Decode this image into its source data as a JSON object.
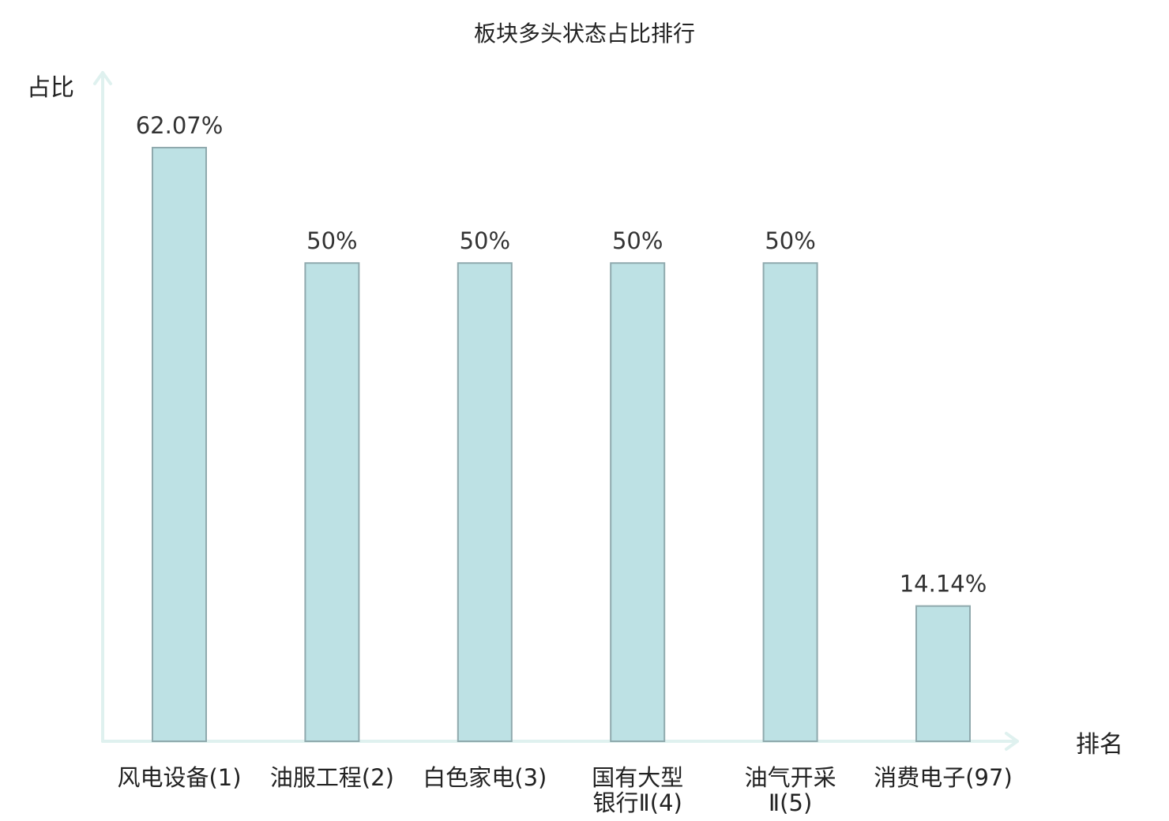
{
  "chart_data": {
    "type": "bar",
    "title": "板块多头状态占比排行",
    "ylabel": "占比",
    "xlabel": "排名",
    "categories": [
      [
        "风电设备(1)"
      ],
      [
        "油服工程(2)"
      ],
      [
        "白色家电(3)"
      ],
      [
        "国有大型",
        "银行Ⅱ(4)"
      ],
      [
        "油气开采",
        "Ⅱ(5)"
      ],
      [
        "消费电子(97)"
      ]
    ],
    "values": [
      62.07,
      50,
      50,
      50,
      50,
      14.14
    ],
    "value_labels": [
      "62.07%",
      "50%",
      "50%",
      "50%",
      "50%",
      "14.14%"
    ],
    "highlight_index": 5,
    "ylim": [
      0,
      70
    ],
    "grid": false,
    "colors": {
      "bar_fill": "#bde1e4",
      "bar_stroke": "#8fa9ad",
      "axis": "#dff1ef",
      "highlight_text": "#e8141c",
      "text": "#222222"
    }
  }
}
